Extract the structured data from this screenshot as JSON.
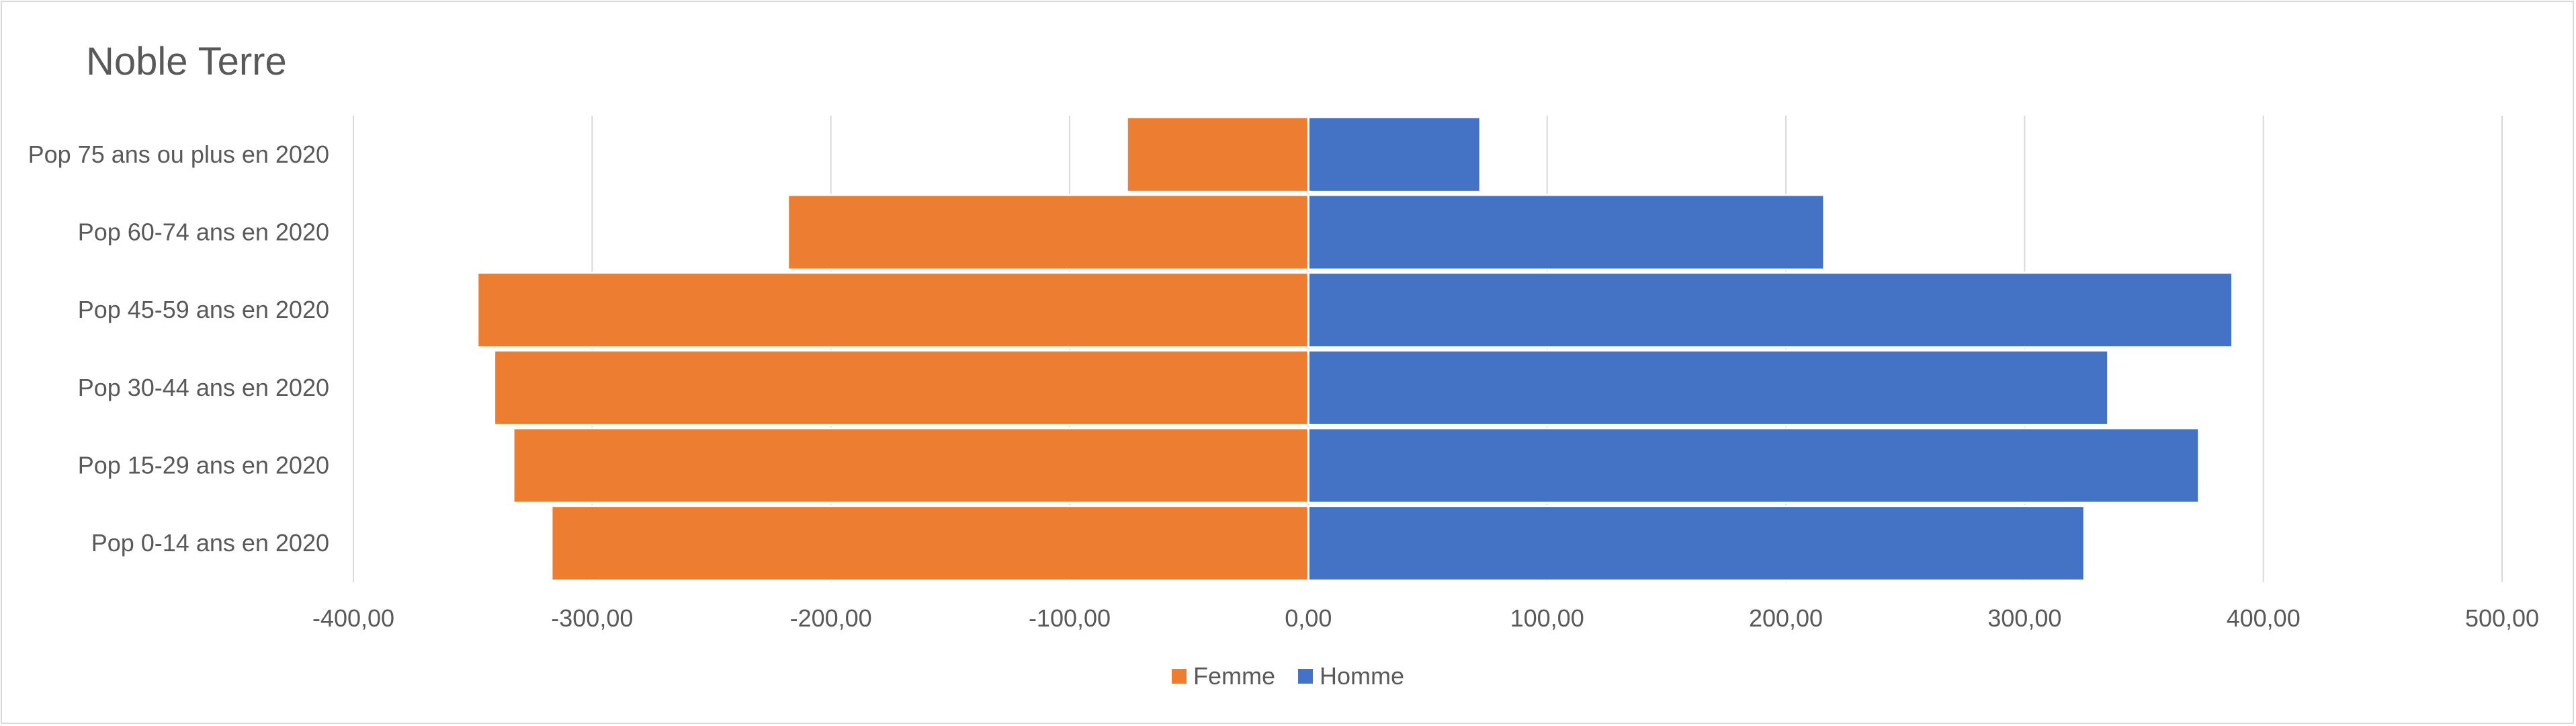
{
  "chart_data": {
    "type": "bar",
    "orientation": "horizontal",
    "stacked": true,
    "title": "Noble Terre",
    "categories": [
      "Pop 75 ans ou plus en 2020",
      "Pop 60-74 ans en 2020",
      "Pop 45-59 ans en 2020",
      "Pop 30-44 ans en 2020",
      "Pop 15-29 ans en 2020",
      "Pop 0-14 ans en 2020"
    ],
    "series": [
      {
        "name": "Femme",
        "color": "#ED7D31",
        "values": [
          -76,
          -218,
          -348,
          -341,
          -333,
          -317
        ]
      },
      {
        "name": "Homme",
        "color": "#4472C4",
        "values": [
          72,
          216,
          387,
          335,
          373,
          325
        ]
      }
    ],
    "xlim": [
      -400,
      500
    ],
    "xticks": [
      -400,
      -300,
      -200,
      -100,
      0,
      100,
      200,
      300,
      400,
      500
    ],
    "xtick_labels": [
      "-400,00",
      "-300,00",
      "-200,00",
      "-100,00",
      "0,00",
      "100,00",
      "200,00",
      "300,00",
      "400,00",
      "500,00"
    ],
    "grid": true,
    "legend_position": "bottom"
  }
}
